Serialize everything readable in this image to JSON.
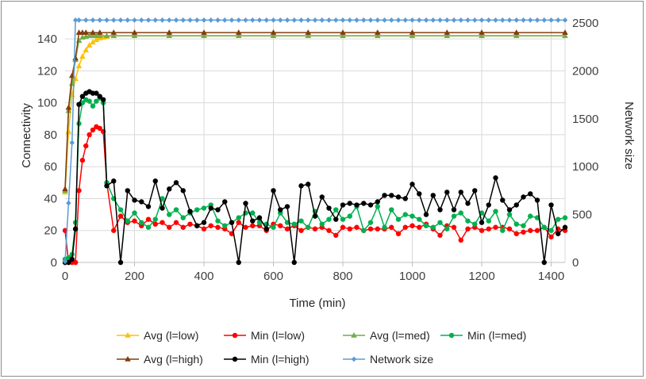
{
  "chart_data": {
    "type": "line",
    "title": "",
    "xlabel": "Time (min)",
    "ylabel": "Connectivity",
    "y2label": "Network size",
    "xlim": [
      0,
      1440
    ],
    "ylim": [
      0,
      150
    ],
    "y2lim": [
      0,
      2500
    ],
    "xticks": [
      0,
      200,
      400,
      600,
      800,
      1000,
      1200,
      1400
    ],
    "yticks": [
      0,
      20,
      40,
      60,
      80,
      100,
      120,
      140
    ],
    "y2ticks": [
      0,
      500,
      1000,
      1500,
      2000,
      2500
    ],
    "grid": true,
    "legend_position": "bottom",
    "colors": {
      "avg_low": "#ffc000",
      "min_low": "#ff0000",
      "avg_med": "#70ad47",
      "min_med": "#00b050",
      "avg_high": "#843c0c",
      "min_high": "#000000",
      "network": "#5b9bd5",
      "grid": "#d9d9d9",
      "axis": "#bfbfbf"
    },
    "series": [
      {
        "name": "Avg (l=low)",
        "key": "avg_low",
        "axis": "left",
        "marker": "triangle",
        "x": [
          0,
          10,
          20,
          30,
          40,
          50,
          60,
          70,
          80,
          90,
          100,
          110,
          120,
          140,
          200,
          300,
          400,
          500,
          600,
          700,
          800,
          900,
          1000,
          1100,
          1200,
          1300,
          1440
        ],
        "values": [
          44,
          82,
          105,
          115,
          123,
          129,
          133,
          136,
          138,
          139.5,
          140.5,
          141,
          141.5,
          142,
          142,
          142,
          142,
          142,
          142,
          142,
          142,
          142,
          142,
          142,
          142,
          142,
          142
        ]
      },
      {
        "name": "Min (l=low)",
        "key": "min_low",
        "axis": "left",
        "marker": "circle",
        "x": [
          0,
          10,
          20,
          30,
          40,
          50,
          60,
          70,
          80,
          90,
          100,
          110,
          120,
          140,
          160,
          180,
          200,
          220,
          240,
          260,
          280,
          300,
          320,
          340,
          360,
          380,
          400,
          420,
          440,
          460,
          480,
          500,
          520,
          540,
          560,
          580,
          600,
          620,
          640,
          660,
          680,
          700,
          720,
          740,
          760,
          780,
          800,
          820,
          840,
          860,
          880,
          900,
          920,
          940,
          960,
          980,
          1000,
          1020,
          1040,
          1060,
          1080,
          1100,
          1120,
          1140,
          1160,
          1180,
          1200,
          1220,
          1240,
          1260,
          1280,
          1300,
          1320,
          1340,
          1360,
          1380,
          1400,
          1420,
          1440
        ],
        "values": [
          20,
          0,
          0,
          0,
          45,
          64,
          73,
          80,
          83,
          85,
          84,
          82,
          50,
          20,
          29,
          25,
          26,
          23,
          27,
          24,
          25,
          22,
          25,
          22,
          24,
          23,
          21,
          23,
          22,
          21,
          18,
          25,
          22,
          23,
          23,
          20,
          24,
          23,
          21,
          23,
          20,
          22,
          21,
          22,
          20,
          17,
          22,
          21,
          22,
          20,
          21,
          21,
          21,
          22,
          18,
          22,
          23,
          22,
          24,
          21,
          17,
          23,
          22,
          14,
          21,
          22,
          20,
          21,
          22,
          22,
          21,
          18,
          19,
          20,
          20,
          22,
          16,
          21,
          20
        ]
      },
      {
        "name": "Avg (l=med)",
        "key": "avg_med",
        "axis": "left",
        "marker": "triangle",
        "x": [
          0,
          10,
          20,
          30,
          40,
          50,
          60,
          70,
          80,
          90,
          100,
          120,
          140,
          200,
          300,
          400,
          500,
          600,
          700,
          800,
          900,
          1000,
          1100,
          1200,
          1300,
          1440
        ],
        "values": [
          45,
          95,
          112,
          127,
          139,
          141,
          141.5,
          142,
          142,
          142,
          142,
          142,
          142,
          142,
          142,
          142,
          142,
          142,
          142,
          142,
          142,
          142,
          142,
          142,
          142,
          142
        ]
      },
      {
        "name": "Min (l=med)",
        "key": "min_med",
        "axis": "left",
        "marker": "circle",
        "x": [
          0,
          10,
          20,
          30,
          40,
          50,
          60,
          70,
          80,
          90,
          100,
          110,
          120,
          140,
          160,
          180,
          200,
          220,
          240,
          260,
          280,
          300,
          320,
          340,
          360,
          380,
          400,
          420,
          440,
          460,
          480,
          500,
          520,
          540,
          560,
          580,
          600,
          620,
          640,
          660,
          680,
          700,
          720,
          740,
          760,
          780,
          800,
          820,
          840,
          860,
          880,
          900,
          920,
          940,
          960,
          980,
          1000,
          1020,
          1040,
          1060,
          1080,
          1100,
          1120,
          1140,
          1160,
          1180,
          1200,
          1220,
          1240,
          1260,
          1280,
          1300,
          1320,
          1340,
          1360,
          1380,
          1400,
          1420,
          1440
        ],
        "values": [
          2,
          3,
          5,
          25,
          87,
          100,
          102,
          101,
          98,
          101,
          103,
          100,
          50,
          40,
          33,
          26,
          31,
          25,
          22,
          27,
          40,
          30,
          33,
          28,
          31,
          33,
          34,
          36,
          26,
          23,
          25,
          28,
          31,
          31,
          25,
          24,
          22,
          31,
          25,
          24,
          26,
          22,
          32,
          24,
          27,
          33,
          27,
          29,
          35,
          20,
          25,
          35,
          22,
          33,
          27,
          30,
          29,
          27,
          23,
          22,
          25,
          21,
          29,
          31,
          26,
          24,
          31,
          26,
          32,
          20,
          30,
          24,
          23,
          29,
          28,
          22,
          20,
          27,
          28
        ]
      },
      {
        "name": "Avg (l=high)",
        "key": "avg_high",
        "axis": "left",
        "marker": "triangle",
        "x": [
          0,
          10,
          20,
          30,
          40,
          50,
          60,
          80,
          100,
          140,
          200,
          300,
          400,
          500,
          600,
          700,
          800,
          900,
          1000,
          1100,
          1200,
          1300,
          1440
        ],
        "values": [
          46,
          97,
          117,
          128,
          144,
          144,
          144,
          144,
          144,
          144,
          144,
          144,
          144,
          144,
          144,
          144,
          144,
          144,
          144,
          144,
          144,
          144,
          144
        ]
      },
      {
        "name": "Min (l=high)",
        "key": "min_high",
        "axis": "left",
        "marker": "circle",
        "x": [
          0,
          10,
          20,
          30,
          40,
          50,
          60,
          70,
          80,
          90,
          100,
          110,
          120,
          140,
          160,
          180,
          200,
          220,
          240,
          260,
          280,
          300,
          320,
          340,
          360,
          380,
          400,
          420,
          440,
          460,
          480,
          500,
          520,
          540,
          560,
          580,
          600,
          620,
          640,
          660,
          680,
          700,
          720,
          740,
          760,
          780,
          800,
          820,
          840,
          860,
          880,
          900,
          920,
          940,
          960,
          980,
          1000,
          1020,
          1040,
          1060,
          1080,
          1100,
          1120,
          1140,
          1160,
          1180,
          1200,
          1220,
          1240,
          1260,
          1280,
          1300,
          1320,
          1340,
          1360,
          1380,
          1400,
          1420,
          1440
        ],
        "values": [
          0,
          0,
          2,
          21,
          99,
          104,
          106,
          107,
          106,
          106,
          104,
          102,
          48,
          51,
          0,
          45,
          39,
          38,
          35,
          51,
          34,
          46,
          50,
          45,
          32,
          23,
          25,
          34,
          33,
          38,
          25,
          0,
          37,
          26,
          28,
          21,
          45,
          33,
          35,
          0,
          48,
          49,
          29,
          41,
          34,
          27,
          36,
          37,
          36,
          37,
          36,
          38,
          42,
          42,
          41,
          40,
          49,
          43,
          30,
          42,
          33,
          44,
          33,
          44,
          37,
          45,
          25,
          36,
          53,
          39,
          33,
          36,
          41,
          43,
          39,
          0,
          36,
          18,
          22
        ]
      },
      {
        "name": "Network size",
        "key": "network",
        "axis": "right",
        "marker": "diamond",
        "x": [
          0,
          10,
          20,
          30,
          40,
          60,
          80,
          100,
          120,
          140,
          160,
          180,
          200,
          220,
          240,
          260,
          280,
          300,
          320,
          340,
          360,
          380,
          400,
          420,
          440,
          460,
          480,
          500,
          520,
          540,
          560,
          580,
          600,
          620,
          640,
          660,
          680,
          700,
          720,
          740,
          760,
          780,
          800,
          820,
          840,
          860,
          880,
          900,
          920,
          940,
          960,
          980,
          1000,
          1020,
          1040,
          1060,
          1080,
          1100,
          1120,
          1140,
          1160,
          1180,
          1200,
          1220,
          1240,
          1260,
          1280,
          1300,
          1320,
          1340,
          1360,
          1380,
          1400,
          1420,
          1440
        ],
        "values": [
          10,
          620,
          1250,
          2530,
          2530,
          2530,
          2530,
          2530,
          2530,
          2530,
          2530,
          2530,
          2530,
          2530,
          2530,
          2530,
          2530,
          2530,
          2530,
          2530,
          2530,
          2530,
          2530,
          2530,
          2530,
          2530,
          2530,
          2530,
          2530,
          2530,
          2530,
          2530,
          2530,
          2530,
          2530,
          2530,
          2530,
          2530,
          2530,
          2530,
          2530,
          2530,
          2530,
          2530,
          2530,
          2530,
          2530,
          2530,
          2530,
          2530,
          2530,
          2530,
          2530,
          2530,
          2530,
          2530,
          2530,
          2530,
          2530,
          2530,
          2530,
          2530,
          2530,
          2530,
          2530,
          2530,
          2530,
          2530,
          2530,
          2530,
          2530,
          2530,
          2530,
          2530,
          2530
        ]
      }
    ],
    "legend": [
      [
        "Avg (l=low)",
        "Min (l=low)",
        "Avg (l=med)",
        "Min (l=med)"
      ],
      [
        "Avg (l=high)",
        "Min (l=high)",
        "Network size"
      ]
    ]
  }
}
